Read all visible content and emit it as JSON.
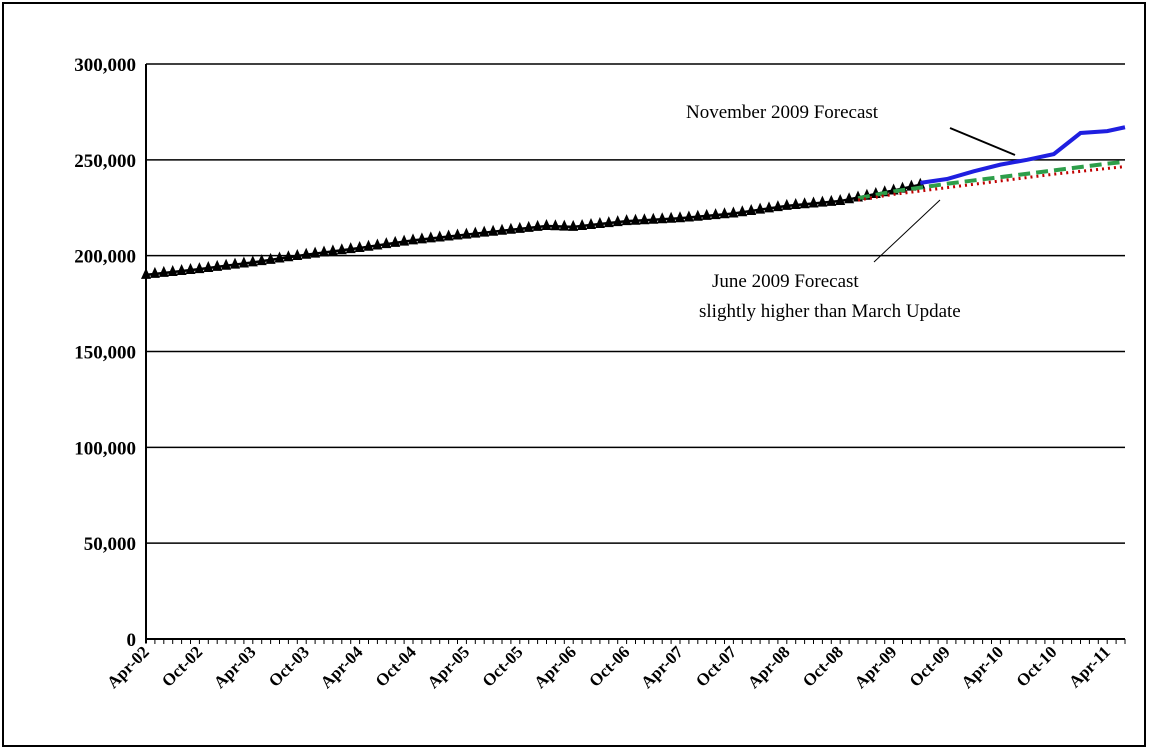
{
  "chart_data": {
    "type": "line",
    "title": "",
    "xlabel": "",
    "ylabel": "",
    "ylim": [
      0,
      300000
    ],
    "yticks": [
      0,
      50000,
      100000,
      150000,
      200000,
      250000,
      300000
    ],
    "ytick_labels": [
      "0",
      "50,000",
      "100,000",
      "150,000",
      "200,000",
      "250,000",
      "300,000"
    ],
    "xlim": [
      "2002-04",
      "2011-06"
    ],
    "xtick_labels": [
      "Apr-02",
      "Oct-02",
      "Apr-03",
      "Oct-03",
      "Apr-04",
      "Oct-04",
      "Apr-05",
      "Oct-05",
      "Apr-06",
      "Oct-06",
      "Apr-07",
      "Oct-07",
      "Apr-08",
      "Oct-08",
      "Apr-09",
      "Oct-09",
      "Apr-10",
      "Oct-10",
      "Apr-11"
    ],
    "grid": "horizontal",
    "series": [
      {
        "style": "black-triangles",
        "color": "#000000",
        "x": [
          "2002-04",
          "2002-10",
          "2003-04",
          "2003-10",
          "2004-04",
          "2004-10",
          "2005-04",
          "2005-10",
          "2006-01",
          "2006-04",
          "2006-10",
          "2007-04",
          "2007-10",
          "2008-04",
          "2008-10",
          "2009-04",
          "2009-07"
        ],
        "y": [
          190000,
          193000,
          196500,
          200500,
          204000,
          208000,
          211000,
          214000,
          215500,
          215000,
          218000,
          219500,
          222000,
          226000,
          228500,
          234000,
          237000
        ]
      },
      {
        "style": "blue-solid",
        "color": "#1f1fe0",
        "x": [
          "2009-07",
          "2009-10",
          "2010-01",
          "2010-04",
          "2010-07",
          "2010-10",
          "2011-01",
          "2011-04",
          "2011-06"
        ],
        "y": [
          238000,
          240000,
          244000,
          247500,
          250000,
          253000,
          264000,
          265000,
          267000
        ]
      },
      {
        "style": "green-dashed",
        "color": "#2e9e4a",
        "x": [
          "2008-12",
          "2009-04",
          "2009-10",
          "2010-04",
          "2010-10",
          "2011-04",
          "2011-06"
        ],
        "y": [
          230000,
          233500,
          237500,
          241000,
          244500,
          248000,
          249000
        ]
      },
      {
        "style": "red-dotted",
        "color": "#c00000",
        "x": [
          "2008-12",
          "2009-04",
          "2009-10",
          "2010-04",
          "2010-10",
          "2011-04",
          "2011-06"
        ],
        "y": [
          229000,
          232000,
          235500,
          239000,
          242500,
          245500,
          246500
        ]
      }
    ],
    "annotations": [
      {
        "text": "November 2009 Forecast",
        "lines": [
          "November 2009 Forecast"
        ]
      },
      {
        "text": "June 2009 Forecast slightly higher than March Update",
        "lines": [
          "June 2009 Forecast",
          "slightly higher than March Update"
        ]
      }
    ]
  }
}
